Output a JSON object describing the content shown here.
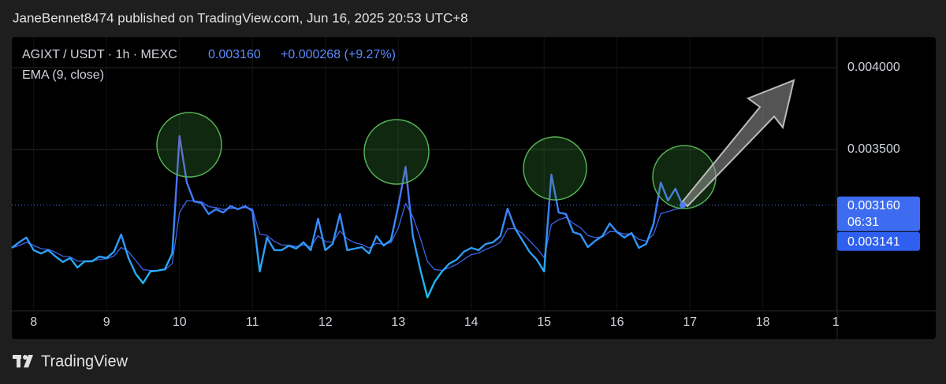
{
  "header": {
    "text": "JaneBennet8474 published on TradingView.com, Jun 16, 2025 20:53 UTC+8"
  },
  "footer": {
    "brand": "TradingView"
  },
  "chart_data": {
    "type": "line",
    "quote": {
      "price": "0.003160",
      "change": "+0.000268 (+9.27%)"
    },
    "countdown": "06:31",
    "x": [
      7.7,
      7.8,
      7.9,
      8.0,
      8.1,
      8.2,
      8.3,
      8.4,
      8.5,
      8.6,
      8.7,
      8.8,
      8.9,
      9.0,
      9.1,
      9.2,
      9.3,
      9.4,
      9.5,
      9.6,
      9.7,
      9.8,
      9.9,
      10.0,
      10.1,
      10.2,
      10.3,
      10.4,
      10.5,
      10.6,
      10.7,
      10.8,
      10.9,
      11.0,
      11.1,
      11.2,
      11.3,
      11.4,
      11.5,
      11.6,
      11.7,
      11.8,
      11.9,
      12.0,
      12.1,
      12.2,
      12.3,
      12.4,
      12.5,
      12.6,
      12.7,
      12.8,
      12.9,
      13.0,
      13.1,
      13.2,
      13.3,
      13.4,
      13.5,
      13.6,
      13.7,
      13.8,
      13.9,
      14.0,
      14.1,
      14.2,
      14.3,
      14.4,
      14.5,
      14.6,
      14.7,
      14.8,
      14.9,
      15.0,
      15.1,
      15.2,
      15.3,
      15.4,
      15.5,
      15.6,
      15.7,
      15.8,
      15.9,
      16.0,
      16.1,
      16.2,
      16.3,
      16.4,
      16.5,
      16.6,
      16.7,
      16.8,
      16.9
    ],
    "series": [
      {
        "name": "AGIXT / USDT · 1h · MEXC",
        "color": "#4a7dff",
        "gradient": [
          "#8c4dff",
          "#3f7cff",
          "#19c3f0"
        ],
        "last_label": "0.003160",
        "values": [
          0.002899,
          0.002933,
          0.002962,
          0.002885,
          0.002865,
          0.002885,
          0.002846,
          0.002813,
          0.002837,
          0.002779,
          0.002817,
          0.002817,
          0.002846,
          0.002837,
          0.002875,
          0.002981,
          0.002837,
          0.00274,
          0.002683,
          0.002755,
          0.00276,
          0.002769,
          0.002865,
          0.003582,
          0.003298,
          0.003183,
          0.003173,
          0.003106,
          0.003135,
          0.003115,
          0.003154,
          0.003135,
          0.003154,
          0.003125,
          0.002755,
          0.002962,
          0.002885,
          0.002885,
          0.002913,
          0.002894,
          0.002933,
          0.002885,
          0.003077,
          0.002885,
          0.002923,
          0.003106,
          0.002885,
          0.002894,
          0.002904,
          0.002865,
          0.002971,
          0.002913,
          0.002947,
          0.003154,
          0.003394,
          0.002971,
          0.002769,
          0.002596,
          0.002692,
          0.002755,
          0.002803,
          0.002827,
          0.002875,
          0.002899,
          0.002885,
          0.002923,
          0.002933,
          0.002971,
          0.003139,
          0.003019,
          0.002947,
          0.002875,
          0.002827,
          0.002755,
          0.003346,
          0.003115,
          0.003106,
          0.002995,
          0.002981,
          0.002904,
          0.002942,
          0.002971,
          0.003048,
          0.002995,
          0.002962,
          0.00299,
          0.002899,
          0.002923,
          0.003043,
          0.003298,
          0.003188,
          0.00326,
          0.00316
        ]
      },
      {
        "name": "EMA (9, close)",
        "color": "#3d64e8",
        "last_label": "0.003141",
        "values": [
          0.002899,
          0.002913,
          0.002933,
          0.002914,
          0.002894,
          0.00289,
          0.002872,
          0.002848,
          0.002844,
          0.002818,
          0.002818,
          0.002817,
          0.002829,
          0.002832,
          0.002849,
          0.002902,
          0.002876,
          0.002822,
          0.002766,
          0.002762,
          0.002761,
          0.002764,
          0.002804,
          0.003115,
          0.003188,
          0.003186,
          0.003181,
          0.003151,
          0.003145,
          0.003133,
          0.003141,
          0.003139,
          0.003145,
          0.003137,
          0.002984,
          0.002975,
          0.002939,
          0.002917,
          0.002915,
          0.002907,
          0.002917,
          0.002904,
          0.002973,
          0.002938,
          0.002932,
          0.003002,
          0.002955,
          0.002931,
          0.00292,
          0.002898,
          0.002927,
          0.002921,
          0.002931,
          0.00302,
          0.00317,
          0.00309,
          0.002962,
          0.002816,
          0.002766,
          0.002762,
          0.002778,
          0.002798,
          0.002829,
          0.002857,
          0.002868,
          0.00289,
          0.002907,
          0.002933,
          0.003015,
          0.003017,
          0.002989,
          0.002943,
          0.002897,
          0.00284,
          0.003042,
          0.003071,
          0.003085,
          0.003049,
          0.003022,
          0.002975,
          0.002962,
          0.002966,
          0.002999,
          0.002997,
          0.002983,
          0.002986,
          0.002951,
          0.00294,
          0.002981,
          0.003108,
          0.00312,
          0.003135,
          0.003141
        ]
      }
    ],
    "xlim": [
      7.7,
      19.02
    ],
    "xticks": [
      8,
      9,
      10,
      11,
      12,
      13,
      14,
      15,
      16,
      17,
      18,
      {
        "value": 19,
        "label": "1"
      }
    ],
    "ylim": [
      0.0025,
      0.0042
    ],
    "yticks": [
      {
        "value": 0.0035,
        "label": "0.003500"
      },
      {
        "value": 0.004,
        "label": "0.004000"
      }
    ],
    "grid": true
  }
}
